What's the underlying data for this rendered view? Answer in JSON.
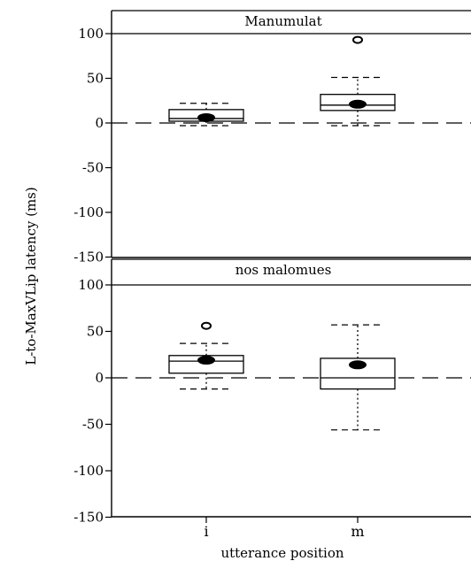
{
  "chart_data": {
    "type": "boxplot",
    "ylabel": "L-to-MaxVLip latency (ms)",
    "xlabel": "utterance position",
    "categories": [
      "i",
      "m"
    ],
    "ylim": [
      -150,
      130
    ],
    "yticks": [
      100,
      50,
      0,
      -50,
      -100,
      -150
    ],
    "ytick_labels": [
      "100",
      "50",
      "0",
      "-50",
      "-100",
      "-150"
    ],
    "reference_line": 0,
    "panels": [
      {
        "title": "Manumulat",
        "boxes": [
          {
            "category": "i",
            "q1": 2,
            "q3": 15,
            "median": 5,
            "mean": 6,
            "whisker_low": -3,
            "whisker_high": 22,
            "outliers": []
          },
          {
            "category": "m",
            "q1": 14,
            "q3": 32,
            "median": 20,
            "mean": 21,
            "whisker_low": -3,
            "whisker_high": 51,
            "outliers": [
              93
            ]
          }
        ]
      },
      {
        "title": "nos malomues",
        "boxes": [
          {
            "category": "i",
            "q1": 5,
            "q3": 24,
            "median": 18,
            "mean": 19,
            "whisker_low": -12,
            "whisker_high": 37,
            "outliers": [
              56
            ]
          },
          {
            "category": "m",
            "q1": -12,
            "q3": 21,
            "median": 0,
            "mean": 14,
            "whisker_low": -56,
            "whisker_high": 57,
            "outliers": []
          }
        ]
      }
    ]
  }
}
